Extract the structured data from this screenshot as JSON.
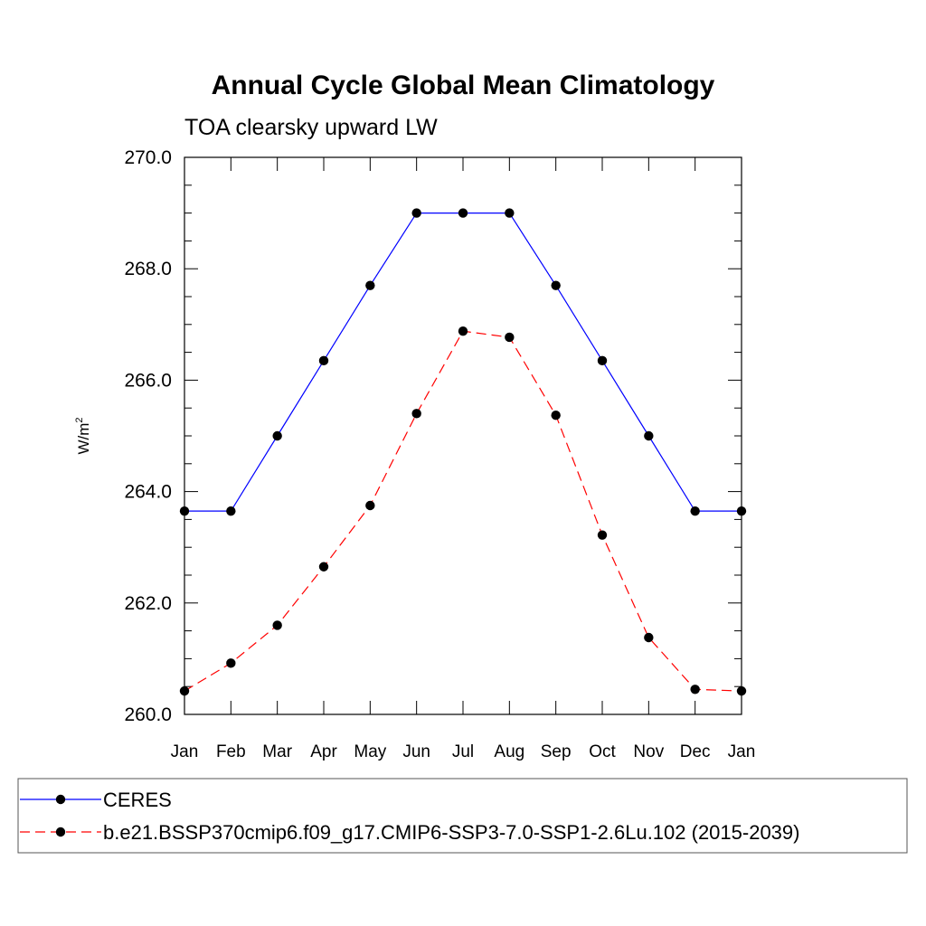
{
  "chart_data": {
    "type": "line",
    "title": "Annual Cycle Global Mean Climatology",
    "subtitle": "TOA clearsky upward LW",
    "ylabel": "W/m",
    "ylabel_superscript": "2",
    "xlabel": "",
    "categories": [
      "Jan",
      "Feb",
      "Mar",
      "Apr",
      "May",
      "Jun",
      "Jul",
      "Aug",
      "Sep",
      "Oct",
      "Nov",
      "Dec",
      "Jan"
    ],
    "ylim": [
      260.0,
      270.0
    ],
    "yticks": [
      260.0,
      262.0,
      264.0,
      266.0,
      268.0,
      270.0
    ],
    "ytick_labels": [
      "260.0",
      "262.0",
      "264.0",
      "266.0",
      "268.0",
      "270.0"
    ],
    "series": [
      {
        "name": "CERES",
        "color": "#0000ff",
        "dash": "solid",
        "values": [
          263.65,
          263.65,
          265.0,
          266.35,
          267.7,
          269.0,
          269.0,
          269.0,
          267.7,
          266.35,
          265.0,
          263.65,
          263.65
        ]
      },
      {
        "name": "b.e21.BSSP370cmip6.f09_g17.CMIP6-SSP3-7.0-SSP1-2.6Lu.102 (2015-2039)",
        "color": "#ff0000",
        "dash": "dashed",
        "values": [
          260.42,
          260.92,
          261.6,
          262.65,
          263.75,
          265.4,
          266.88,
          266.77,
          265.37,
          263.22,
          261.38,
          260.45,
          260.42
        ]
      }
    ],
    "legend": "bottom"
  }
}
